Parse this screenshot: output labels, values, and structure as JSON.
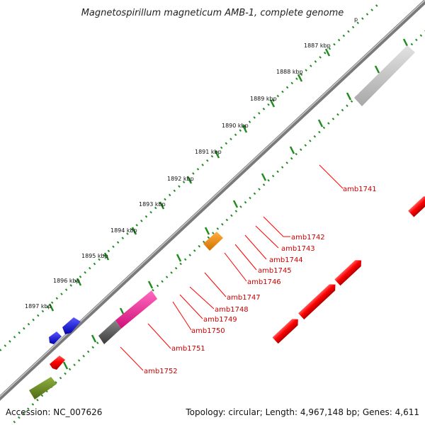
{
  "header": {
    "title": "Magnetospirillum magneticum AMB-1, complete genome",
    "fragment": "p"
  },
  "ruler": {
    "labels": [
      "1887 kbp",
      "1888 kbp",
      "1889 kbp",
      "1890 kbp",
      "1891 kbp",
      "1892 kbp",
      "1893 kbp",
      "1894 kbp",
      "1895 kbp",
      "1896 kbp",
      "1897 kbp"
    ]
  },
  "genes": {
    "labels": [
      "amb1741",
      "amb1742",
      "amb1743",
      "amb1744",
      "amb1745",
      "amb1746",
      "amb1747",
      "amb1748",
      "amb1749",
      "amb1750",
      "amb1751",
      "amb1752"
    ]
  },
  "colors": {
    "cds": "#ff0000",
    "backbone": "#777777",
    "tick": "#228b22",
    "gene_label": "#cc0000",
    "blue_feature": "#0000ff",
    "orange_feature": "#ff8c00",
    "magenta_feature": "#ff1493",
    "grey_feature": "#c8c8c8",
    "dark_feature": "#555555",
    "olive_feature": "#6b8e23"
  },
  "footer": {
    "accession": "Accession: NC_007626",
    "summary": "Topology: circular; Length: 4,967,148 bp; Genes: 4,611"
  }
}
